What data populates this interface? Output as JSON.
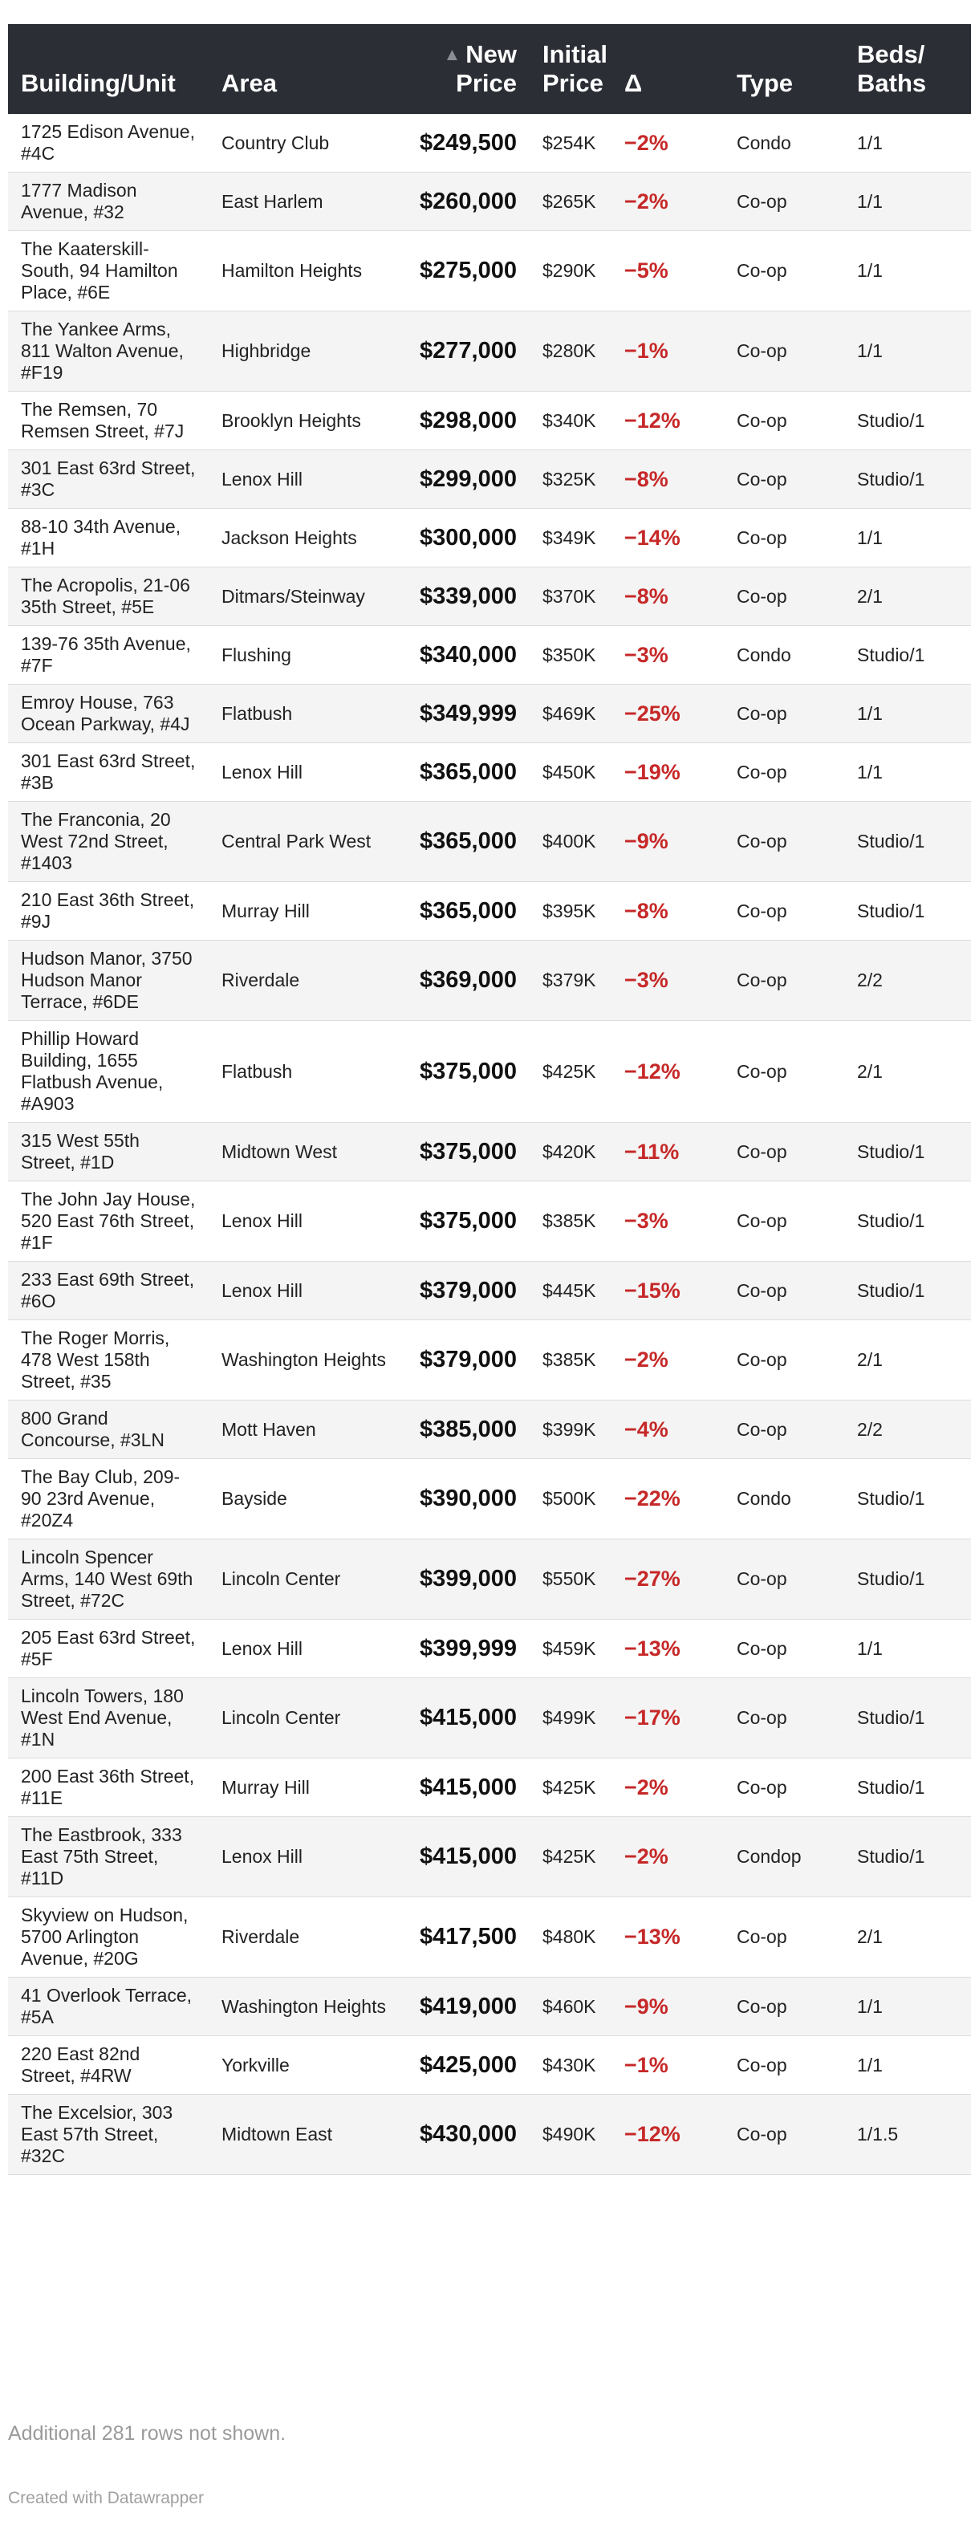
{
  "colors": {
    "header_bg": "#2b2e35",
    "delta_negative": "#c62828"
  },
  "header": {
    "building": "Building/Unit",
    "area": "Area",
    "new_price_line1": "New",
    "new_price_line2": "Price",
    "initial_price_line1": "Initial",
    "initial_price_line2": "Price",
    "delta": "Δ",
    "type": "Type",
    "beds_line1": "Beds/",
    "beds_line2": "Baths",
    "sort_icon": "▲"
  },
  "rows": [
    {
      "building": "1725 Edison Avenue, #4C",
      "area": "Country Club",
      "new_price": "$249,500",
      "initial_price": "$254K",
      "delta": "−2%",
      "type": "Condo",
      "beds_baths": "1/1"
    },
    {
      "building": "1777 Madison Avenue, #32",
      "area": "East Harlem",
      "new_price": "$260,000",
      "initial_price": "$265K",
      "delta": "−2%",
      "type": "Co-op",
      "beds_baths": "1/1"
    },
    {
      "building": "The Kaaterskill-South, 94 Hamilton Place, #6E",
      "area": "Hamilton Heights",
      "new_price": "$275,000",
      "initial_price": "$290K",
      "delta": "−5%",
      "type": "Co-op",
      "beds_baths": "1/1"
    },
    {
      "building": "The Yankee Arms, 811 Walton Avenue, #F19",
      "area": "Highbridge",
      "new_price": "$277,000",
      "initial_price": "$280K",
      "delta": "−1%",
      "type": "Co-op",
      "beds_baths": "1/1"
    },
    {
      "building": "The Remsen, 70 Remsen Street, #7J",
      "area": "Brooklyn Heights",
      "new_price": "$298,000",
      "initial_price": "$340K",
      "delta": "−12%",
      "type": "Co-op",
      "beds_baths": "Studio/1"
    },
    {
      "building": "301 East 63rd Street, #3C",
      "area": "Lenox Hill",
      "new_price": "$299,000",
      "initial_price": "$325K",
      "delta": "−8%",
      "type": "Co-op",
      "beds_baths": "Studio/1"
    },
    {
      "building": "88-10 34th Avenue, #1H",
      "area": "Jackson Heights",
      "new_price": "$300,000",
      "initial_price": "$349K",
      "delta": "−14%",
      "type": "Co-op",
      "beds_baths": "1/1"
    },
    {
      "building": "The Acropolis, 21-06 35th Street, #5E",
      "area": "Ditmars/Steinway",
      "new_price": "$339,000",
      "initial_price": "$370K",
      "delta": "−8%",
      "type": "Co-op",
      "beds_baths": "2/1"
    },
    {
      "building": "139-76 35th Avenue, #7F",
      "area": "Flushing",
      "new_price": "$340,000",
      "initial_price": "$350K",
      "delta": "−3%",
      "type": "Condo",
      "beds_baths": "Studio/1"
    },
    {
      "building": "Emroy House, 763 Ocean Parkway, #4J",
      "area": "Flatbush",
      "new_price": "$349,999",
      "initial_price": "$469K",
      "delta": "−25%",
      "type": "Co-op",
      "beds_baths": "1/1"
    },
    {
      "building": "301 East 63rd Street, #3B",
      "area": "Lenox Hill",
      "new_price": "$365,000",
      "initial_price": "$450K",
      "delta": "−19%",
      "type": "Co-op",
      "beds_baths": "1/1"
    },
    {
      "building": "The Franconia, 20 West 72nd Street, #1403",
      "area": "Central Park West",
      "new_price": "$365,000",
      "initial_price": "$400K",
      "delta": "−9%",
      "type": "Co-op",
      "beds_baths": "Studio/1"
    },
    {
      "building": "210 East 36th Street, #9J",
      "area": "Murray Hill",
      "new_price": "$365,000",
      "initial_price": "$395K",
      "delta": "−8%",
      "type": "Co-op",
      "beds_baths": "Studio/1"
    },
    {
      "building": "Hudson Manor, 3750 Hudson Manor Terrace, #6DE",
      "area": "Riverdale",
      "new_price": "$369,000",
      "initial_price": "$379K",
      "delta": "−3%",
      "type": "Co-op",
      "beds_baths": "2/2"
    },
    {
      "building": "Phillip Howard Building, 1655 Flatbush Avenue, #A903",
      "area": "Flatbush",
      "new_price": "$375,000",
      "initial_price": "$425K",
      "delta": "−12%",
      "type": "Co-op",
      "beds_baths": "2/1"
    },
    {
      "building": "315 West 55th Street, #1D",
      "area": "Midtown West",
      "new_price": "$375,000",
      "initial_price": "$420K",
      "delta": "−11%",
      "type": "Co-op",
      "beds_baths": "Studio/1"
    },
    {
      "building": "The John Jay House, 520 East 76th Street, #1F",
      "area": "Lenox Hill",
      "new_price": "$375,000",
      "initial_price": "$385K",
      "delta": "−3%",
      "type": "Co-op",
      "beds_baths": "Studio/1"
    },
    {
      "building": "233 East 69th Street, #6O",
      "area": "Lenox Hill",
      "new_price": "$379,000",
      "initial_price": "$445K",
      "delta": "−15%",
      "type": "Co-op",
      "beds_baths": "Studio/1"
    },
    {
      "building": "The Roger Morris, 478 West 158th Street, #35",
      "area": "Washington Heights",
      "new_price": "$379,000",
      "initial_price": "$385K",
      "delta": "−2%",
      "type": "Co-op",
      "beds_baths": "2/1"
    },
    {
      "building": "800 Grand Concourse, #3LN",
      "area": "Mott Haven",
      "new_price": "$385,000",
      "initial_price": "$399K",
      "delta": "−4%",
      "type": "Co-op",
      "beds_baths": "2/2"
    },
    {
      "building": "The Bay Club, 209-90 23rd Avenue, #20Z4",
      "area": "Bayside",
      "new_price": "$390,000",
      "initial_price": "$500K",
      "delta": "−22%",
      "type": "Condo",
      "beds_baths": "Studio/1"
    },
    {
      "building": "Lincoln Spencer Arms, 140 West 69th Street, #72C",
      "area": "Lincoln Center",
      "new_price": "$399,000",
      "initial_price": "$550K",
      "delta": "−27%",
      "type": "Co-op",
      "beds_baths": "Studio/1"
    },
    {
      "building": "205 East 63rd Street, #5F",
      "area": "Lenox Hill",
      "new_price": "$399,999",
      "initial_price": "$459K",
      "delta": "−13%",
      "type": "Co-op",
      "beds_baths": "1/1"
    },
    {
      "building": "Lincoln Towers, 180 West End Avenue, #1N",
      "area": "Lincoln Center",
      "new_price": "$415,000",
      "initial_price": "$499K",
      "delta": "−17%",
      "type": "Co-op",
      "beds_baths": "Studio/1"
    },
    {
      "building": "200 East 36th Street, #11E",
      "area": "Murray Hill",
      "new_price": "$415,000",
      "initial_price": "$425K",
      "delta": "−2%",
      "type": "Co-op",
      "beds_baths": "Studio/1"
    },
    {
      "building": "The Eastbrook, 333 East 75th Street, #11D",
      "area": "Lenox Hill",
      "new_price": "$415,000",
      "initial_price": "$425K",
      "delta": "−2%",
      "type": "Condop",
      "beds_baths": "Studio/1"
    },
    {
      "building": "Skyview on Hudson, 5700 Arlington Avenue, #20G",
      "area": "Riverdale",
      "new_price": "$417,500",
      "initial_price": "$480K",
      "delta": "−13%",
      "type": "Co-op",
      "beds_baths": "2/1"
    },
    {
      "building": "41 Overlook Terrace, #5A",
      "area": "Washington Heights",
      "new_price": "$419,000",
      "initial_price": "$460K",
      "delta": "−9%",
      "type": "Co-op",
      "beds_baths": "1/1"
    },
    {
      "building": "220 East 82nd Street, #4RW",
      "area": "Yorkville",
      "new_price": "$425,000",
      "initial_price": "$430K",
      "delta": "−1%",
      "type": "Co-op",
      "beds_baths": "1/1"
    },
    {
      "building": "The Excelsior, 303 East 57th Street, #32C",
      "area": "Midtown East",
      "new_price": "$430,000",
      "initial_price": "$490K",
      "delta": "−12%",
      "type": "Co-op",
      "beds_baths": "1/1.5"
    }
  ],
  "footer": {
    "notes": "Additional 281 rows not shown.",
    "credit": "Created with Datawrapper"
  }
}
